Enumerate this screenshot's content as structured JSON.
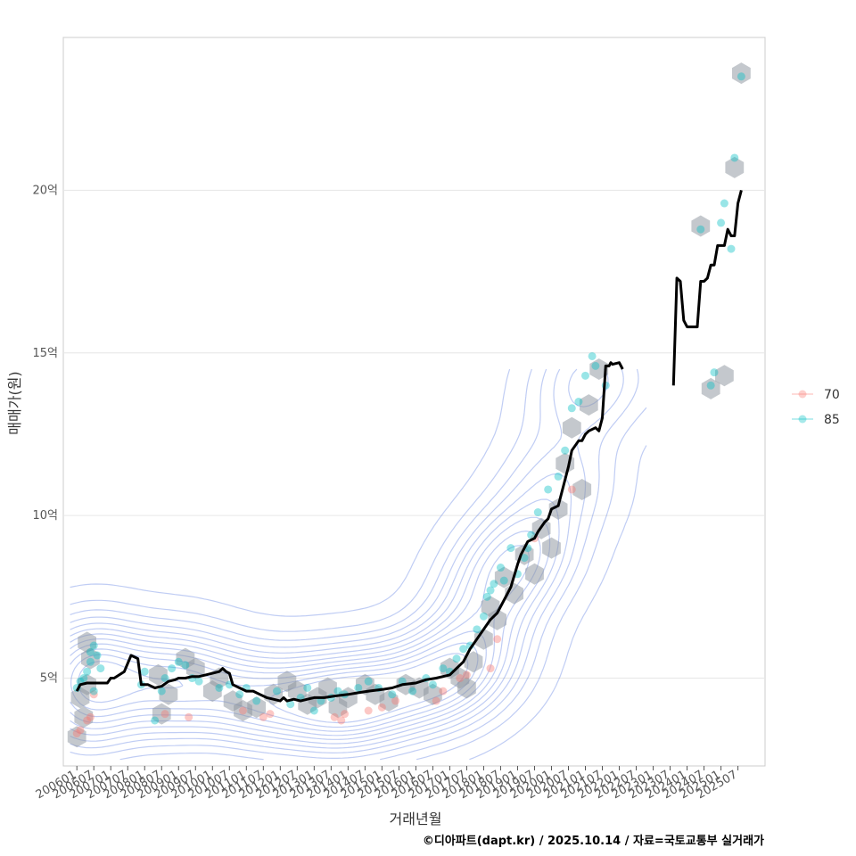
{
  "chart_data": {
    "type": "scatter",
    "title": "",
    "xlabel": "거래년월",
    "ylabel": "매매가(원)",
    "caption": "©디아파트(dapt.kr) / 2025.10.14 / 자료=국토교통부 실거래가",
    "xlim": [
      2005.6,
      2026.3
    ],
    "ylim": [
      2.3,
      24.7
    ],
    "y_ticks": [
      5,
      10,
      15,
      20
    ],
    "y_tick_labels": [
      "5억",
      "10억",
      "15억",
      "20억"
    ],
    "x_ticks": [
      2006.0,
      2006.5,
      2007.0,
      2007.5,
      2008.0,
      2008.5,
      2009.0,
      2009.5,
      2010.0,
      2010.5,
      2011.0,
      2011.5,
      2012.0,
      2012.5,
      2013.0,
      2013.5,
      2014.0,
      2014.5,
      2015.0,
      2015.5,
      2016.0,
      2016.5,
      2017.0,
      2017.5,
      2018.0,
      2018.5,
      2019.0,
      2019.5,
      2020.0,
      2020.5,
      2021.0,
      2021.5,
      2022.0,
      2022.5,
      2023.0,
      2023.5,
      2024.0,
      2024.5,
      2025.0,
      2025.5
    ],
    "x_tick_labels": [
      "200601",
      "200607",
      "200701",
      "200707",
      "200801",
      "200807",
      "200901",
      "200907",
      "201001",
      "201007",
      "201101",
      "201107",
      "201201",
      "201207",
      "201301",
      "201307",
      "201401",
      "201407",
      "201501",
      "201507",
      "201601",
      "201607",
      "201701",
      "201707",
      "201801",
      "201807",
      "201901",
      "201907",
      "202001",
      "202007",
      "202101",
      "202107",
      "202201",
      "202207",
      "202301",
      "202307",
      "202401",
      "202407",
      "202501",
      "202507"
    ],
    "grid": true,
    "legend_position": "right",
    "legend": [
      {
        "name": "70",
        "color": "#F8766D"
      },
      {
        "name": "85",
        "color": "#00BFC4"
      }
    ],
    "colors": {
      "line": "#000000",
      "hex": "#8a929c",
      "contour": "#4a6fe0"
    },
    "series": [
      {
        "name": "70",
        "kind": "points",
        "x": [
          2006.0,
          2006.1,
          2006.3,
          2006.4,
          2006.5,
          2008.6,
          2009.3,
          2010.9,
          2011.5,
          2011.7,
          2013.6,
          2013.8,
          2013.9,
          2014.6,
          2015.0,
          2015.4,
          2016.6,
          2016.8,
          2017.3,
          2017.5,
          2018.2,
          2018.4,
          2019.5,
          2020.6
        ],
        "y": [
          3.3,
          3.4,
          3.7,
          3.8,
          4.5,
          3.9,
          3.8,
          4.0,
          3.8,
          3.9,
          3.8,
          3.7,
          3.9,
          4.0,
          4.1,
          4.3,
          4.3,
          4.6,
          5.0,
          5.1,
          5.3,
          6.2,
          9.3,
          10.8
        ]
      },
      {
        "name": "85",
        "kind": "points",
        "x": [
          2006.0,
          2006.1,
          2006.2,
          2006.3,
          2006.4,
          2006.4,
          2006.5,
          2006.5,
          2006.6,
          2006.7,
          2007.9,
          2008.0,
          2008.3,
          2008.5,
          2008.6,
          2008.8,
          2009.0,
          2009.2,
          2009.4,
          2009.6,
          2010.2,
          2010.5,
          2010.8,
          2011.0,
          2011.3,
          2011.9,
          2012.3,
          2012.6,
          2012.8,
          2013.0,
          2013.2,
          2013.5,
          2013.7,
          2013.9,
          2014.3,
          2014.6,
          2014.9,
          2015.3,
          2015.6,
          2015.9,
          2016.3,
          2016.5,
          2016.8,
          2017.0,
          2017.2,
          2017.4,
          2017.6,
          2017.8,
          2018.0,
          2018.1,
          2018.2,
          2018.3,
          2018.5,
          2018.6,
          2018.8,
          2019.0,
          2019.2,
          2019.3,
          2019.4,
          2019.6,
          2019.9,
          2020.2,
          2020.4,
          2020.6,
          2020.8,
          2021.0,
          2021.2,
          2021.3,
          2021.6,
          2024.4,
          2024.7,
          2024.8,
          2025.0,
          2025.1,
          2025.3,
          2025.4,
          2025.6
        ],
        "y": [
          4.7,
          4.9,
          5.0,
          5.2,
          5.5,
          5.8,
          4.6,
          6.0,
          5.7,
          5.3,
          4.8,
          5.2,
          3.7,
          4.6,
          5.0,
          5.3,
          5.5,
          5.4,
          5.0,
          4.9,
          4.7,
          4.8,
          4.5,
          4.7,
          4.3,
          4.6,
          4.2,
          4.4,
          4.7,
          4.0,
          4.3,
          4.4,
          4.6,
          4.5,
          4.7,
          4.9,
          4.7,
          4.5,
          4.9,
          4.6,
          5.0,
          4.8,
          5.3,
          5.2,
          5.6,
          5.9,
          6.0,
          6.5,
          6.9,
          7.5,
          7.7,
          7.9,
          8.4,
          8.0,
          9.0,
          8.2,
          8.7,
          9.0,
          9.4,
          10.1,
          10.8,
          11.2,
          12.0,
          13.3,
          13.5,
          14.3,
          14.9,
          14.6,
          14.0,
          18.8,
          14.0,
          14.4,
          19.0,
          19.6,
          18.2,
          21.0,
          23.5
        ]
      },
      {
        "name": "trend",
        "kind": "line",
        "x": [
          2006.0,
          2006.1,
          2006.3,
          2006.5,
          2006.7,
          2006.9,
          2007.0,
          2007.1,
          2007.25,
          2007.4,
          2007.6,
          2007.8,
          2007.9,
          2008.0,
          2008.1,
          2008.3,
          2008.5,
          2008.7,
          2008.9,
          2009.0,
          2009.2,
          2009.4,
          2009.6,
          2009.8,
          2010.0,
          2010.2,
          2010.3,
          2010.4,
          2010.5,
          2010.6,
          2010.8,
          2011.0,
          2011.2,
          2011.4,
          2011.6,
          2011.8,
          2012.0,
          2012.1,
          2012.2,
          2012.4,
          2012.6,
          2012.8,
          2013.0,
          2013.3,
          2013.6,
          2014.0,
          2014.3,
          2014.6,
          2015.0,
          2015.3,
          2015.6,
          2016.0,
          2016.3,
          2016.6,
          2016.8,
          2017.0,
          2017.2,
          2017.4,
          2017.6,
          2017.8,
          2018.0,
          2018.2,
          2018.4,
          2018.6,
          2018.8,
          2019.0,
          2019.1,
          2019.3,
          2019.5,
          2019.6,
          2019.8,
          2019.9,
          2020.0,
          2020.2,
          2020.3,
          2020.5,
          2020.6,
          2020.8,
          2020.9,
          2021.0,
          2021.1,
          2021.3,
          2021.4,
          2021.5,
          2021.6,
          2021.7,
          2021.75,
          2021.8,
          2022.0,
          2022.1
        ],
        "y": [
          4.6,
          4.8,
          4.85,
          4.85,
          4.85,
          4.85,
          5.0,
          5.0,
          5.1,
          5.2,
          5.7,
          5.6,
          4.8,
          4.8,
          4.8,
          4.7,
          4.75,
          4.9,
          4.95,
          5.0,
          5.0,
          5.05,
          5.05,
          5.1,
          5.15,
          5.2,
          5.3,
          5.2,
          5.15,
          4.8,
          4.7,
          4.6,
          4.6,
          4.5,
          4.4,
          4.35,
          4.3,
          4.4,
          4.3,
          4.35,
          4.3,
          4.35,
          4.4,
          4.4,
          4.45,
          4.5,
          4.55,
          4.6,
          4.65,
          4.7,
          4.8,
          4.85,
          4.95,
          5.0,
          5.05,
          5.1,
          5.3,
          5.5,
          5.9,
          6.2,
          6.5,
          6.8,
          7.0,
          7.4,
          7.8,
          8.5,
          8.8,
          9.2,
          9.3,
          9.5,
          9.8,
          9.9,
          10.2,
          10.3,
          10.7,
          11.5,
          12.0,
          12.3,
          12.3,
          12.5,
          12.6,
          12.7,
          12.6,
          13.0,
          14.6,
          14.6,
          14.7,
          14.65,
          14.7,
          14.5
        ]
      },
      {
        "name": "trend-recent",
        "kind": "line",
        "x": [
          2023.6,
          2023.7,
          2023.8,
          2023.9,
          2024.0,
          2024.1,
          2024.3,
          2024.4,
          2024.5,
          2024.6,
          2024.7,
          2024.8,
          2024.9,
          2025.0,
          2025.1,
          2025.2,
          2025.3,
          2025.4,
          2025.5,
          2025.6
        ],
        "y": [
          14.0,
          17.3,
          17.2,
          16.0,
          15.8,
          15.8,
          15.8,
          17.2,
          17.2,
          17.3,
          17.7,
          17.7,
          18.3,
          18.3,
          18.3,
          18.8,
          18.6,
          18.6,
          19.6,
          20.0
        ]
      },
      {
        "name": "density",
        "kind": "hexbin",
        "x": [
          2006.0,
          2006.1,
          2006.2,
          2006.3,
          2006.3,
          2006.4,
          2008.4,
          2008.5,
          2008.7,
          2009.2,
          2009.5,
          2010.0,
          2010.2,
          2010.6,
          2010.9,
          2011.3,
          2011.8,
          2012.2,
          2012.5,
          2012.8,
          2013.1,
          2013.4,
          2013.7,
          2014.0,
          2014.5,
          2014.8,
          2015.2,
          2015.7,
          2016.1,
          2016.5,
          2017.0,
          2017.3,
          2017.5,
          2017.7,
          2018.0,
          2018.2,
          2018.4,
          2018.6,
          2018.9,
          2019.2,
          2019.5,
          2019.7,
          2020.0,
          2020.2,
          2020.4,
          2020.6,
          2020.9,
          2021.1,
          2021.4,
          2024.4,
          2024.7,
          2025.1,
          2025.4,
          2025.6
        ],
        "y": [
          3.2,
          4.4,
          3.8,
          4.8,
          6.1,
          5.6,
          5.1,
          3.9,
          4.5,
          5.6,
          5.3,
          4.6,
          5.0,
          4.3,
          4.0,
          4.1,
          4.5,
          4.9,
          4.6,
          4.2,
          4.4,
          4.7,
          4.1,
          4.4,
          4.8,
          4.5,
          4.3,
          4.8,
          4.7,
          4.5,
          5.3,
          5.0,
          4.7,
          5.5,
          6.2,
          7.2,
          6.8,
          8.1,
          7.6,
          8.8,
          8.2,
          9.6,
          9.0,
          10.2,
          11.6,
          12.7,
          10.8,
          13.4,
          14.5,
          18.9,
          13.9,
          14.3,
          20.7,
          23.6
        ]
      }
    ]
  }
}
